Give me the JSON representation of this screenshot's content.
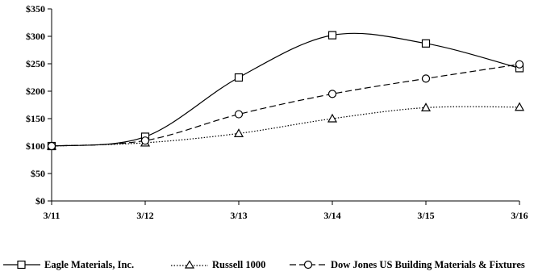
{
  "chart_data": {
    "type": "line",
    "title": "",
    "xlabel": "",
    "ylabel": "",
    "categories": [
      "3/11",
      "3/12",
      "3/13",
      "3/14",
      "3/15",
      "3/16"
    ],
    "ylim": [
      0,
      350
    ],
    "y_ticks": [
      "$0",
      "$50",
      "$100",
      "$150",
      "$200",
      "$250",
      "$300",
      "$350"
    ],
    "grid": false,
    "legend_position": "bottom",
    "series": [
      {
        "name": "Eagle Materials, Inc.",
        "values": [
          100,
          117,
          225,
          302,
          287,
          242
        ],
        "marker": "square",
        "dash": "solid",
        "color": "#000000"
      },
      {
        "name": "Russell 1000",
        "values": [
          100,
          106,
          123,
          150,
          170,
          171
        ],
        "marker": "triangle",
        "dash": "dotted",
        "color": "#000000"
      },
      {
        "name": "Dow Jones US Building Materials & Fixtures",
        "values": [
          100,
          110,
          158,
          195,
          223,
          249
        ],
        "marker": "circle",
        "dash": "dashed",
        "color": "#000000"
      }
    ]
  }
}
